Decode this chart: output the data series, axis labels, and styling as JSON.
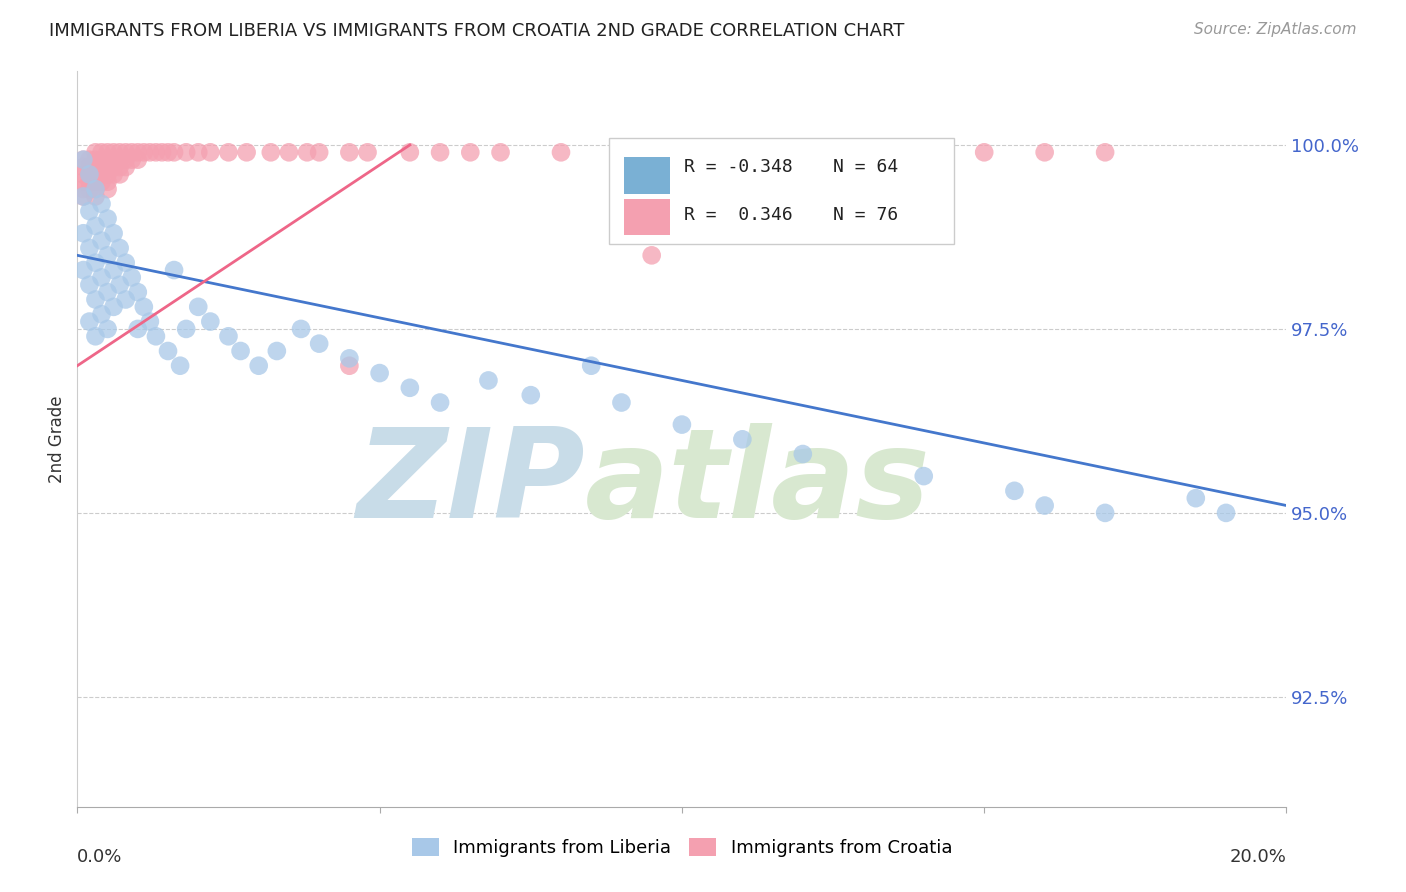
{
  "title": "IMMIGRANTS FROM LIBERIA VS IMMIGRANTS FROM CROATIA 2ND GRADE CORRELATION CHART",
  "source": "Source: ZipAtlas.com",
  "ylabel": "2nd Grade",
  "y_tick_labels": [
    "92.5%",
    "95.0%",
    "97.5%",
    "100.0%"
  ],
  "y_tick_values": [
    0.925,
    0.95,
    0.975,
    1.0
  ],
  "xlim": [
    0.0,
    0.2
  ],
  "ylim": [
    0.91,
    1.01
  ],
  "legend_entry1_r": "R = -0.348",
  "legend_entry1_n": "N = 64",
  "legend_entry2_r": "R =  0.346",
  "legend_entry2_n": "N = 76",
  "legend_color1": "#7ab0d4",
  "legend_color2": "#f4a0b0",
  "scatter_color_liberia": "#a8c8e8",
  "scatter_color_croatia": "#f4a0b0",
  "line_color_liberia": "#4477cc",
  "line_color_croatia": "#ee6688",
  "watermark_zip": "ZIP",
  "watermark_atlas": "atlas",
  "watermark_color": "#dde8f0",
  "liberia_x": [
    0.001,
    0.001,
    0.001,
    0.001,
    0.002,
    0.002,
    0.002,
    0.002,
    0.002,
    0.003,
    0.003,
    0.003,
    0.003,
    0.003,
    0.004,
    0.004,
    0.004,
    0.004,
    0.005,
    0.005,
    0.005,
    0.005,
    0.006,
    0.006,
    0.006,
    0.007,
    0.007,
    0.008,
    0.008,
    0.009,
    0.01,
    0.01,
    0.011,
    0.012,
    0.013,
    0.015,
    0.016,
    0.017,
    0.018,
    0.02,
    0.022,
    0.025,
    0.027,
    0.03,
    0.033,
    0.037,
    0.04,
    0.045,
    0.05,
    0.055,
    0.06,
    0.068,
    0.075,
    0.085,
    0.09,
    0.1,
    0.11,
    0.12,
    0.14,
    0.155,
    0.16,
    0.17,
    0.185,
    0.19
  ],
  "liberia_y": [
    0.998,
    0.993,
    0.988,
    0.983,
    0.996,
    0.991,
    0.986,
    0.981,
    0.976,
    0.994,
    0.989,
    0.984,
    0.979,
    0.974,
    0.992,
    0.987,
    0.982,
    0.977,
    0.99,
    0.985,
    0.98,
    0.975,
    0.988,
    0.983,
    0.978,
    0.986,
    0.981,
    0.984,
    0.979,
    0.982,
    0.98,
    0.975,
    0.978,
    0.976,
    0.974,
    0.972,
    0.983,
    0.97,
    0.975,
    0.978,
    0.976,
    0.974,
    0.972,
    0.97,
    0.972,
    0.975,
    0.973,
    0.971,
    0.969,
    0.967,
    0.965,
    0.968,
    0.966,
    0.97,
    0.965,
    0.962,
    0.96,
    0.958,
    0.955,
    0.953,
    0.951,
    0.95,
    0.952,
    0.95
  ],
  "croatia_x": [
    0.001,
    0.001,
    0.001,
    0.001,
    0.001,
    0.001,
    0.002,
    0.002,
    0.002,
    0.002,
    0.002,
    0.003,
    0.003,
    0.003,
    0.003,
    0.003,
    0.003,
    0.003,
    0.004,
    0.004,
    0.004,
    0.004,
    0.004,
    0.005,
    0.005,
    0.005,
    0.005,
    0.005,
    0.005,
    0.006,
    0.006,
    0.006,
    0.006,
    0.007,
    0.007,
    0.007,
    0.007,
    0.008,
    0.008,
    0.008,
    0.009,
    0.009,
    0.01,
    0.01,
    0.011,
    0.012,
    0.013,
    0.014,
    0.015,
    0.016,
    0.018,
    0.02,
    0.022,
    0.025,
    0.028,
    0.032,
    0.035,
    0.038,
    0.04,
    0.045,
    0.048,
    0.055,
    0.06,
    0.065,
    0.07,
    0.08,
    0.09,
    0.1,
    0.11,
    0.12,
    0.14,
    0.15,
    0.16,
    0.17,
    0.095,
    0.045
  ],
  "croatia_y": [
    0.998,
    0.997,
    0.996,
    0.995,
    0.994,
    0.993,
    0.998,
    0.997,
    0.996,
    0.995,
    0.994,
    0.999,
    0.998,
    0.997,
    0.996,
    0.995,
    0.994,
    0.993,
    0.999,
    0.998,
    0.997,
    0.996,
    0.995,
    0.999,
    0.998,
    0.997,
    0.996,
    0.995,
    0.994,
    0.999,
    0.998,
    0.997,
    0.996,
    0.999,
    0.998,
    0.997,
    0.996,
    0.999,
    0.998,
    0.997,
    0.999,
    0.998,
    0.999,
    0.998,
    0.999,
    0.999,
    0.999,
    0.999,
    0.999,
    0.999,
    0.999,
    0.999,
    0.999,
    0.999,
    0.999,
    0.999,
    0.999,
    0.999,
    0.999,
    0.999,
    0.999,
    0.999,
    0.999,
    0.999,
    0.999,
    0.999,
    0.999,
    0.999,
    0.999,
    0.999,
    0.999,
    0.999,
    0.999,
    0.999,
    0.985,
    0.97
  ],
  "trendline_liberia": [
    0.985,
    0.951
  ],
  "trendline_croatia": [
    0.97,
    1.0
  ],
  "trendline_croatia_xrange": [
    0.0,
    0.055
  ]
}
